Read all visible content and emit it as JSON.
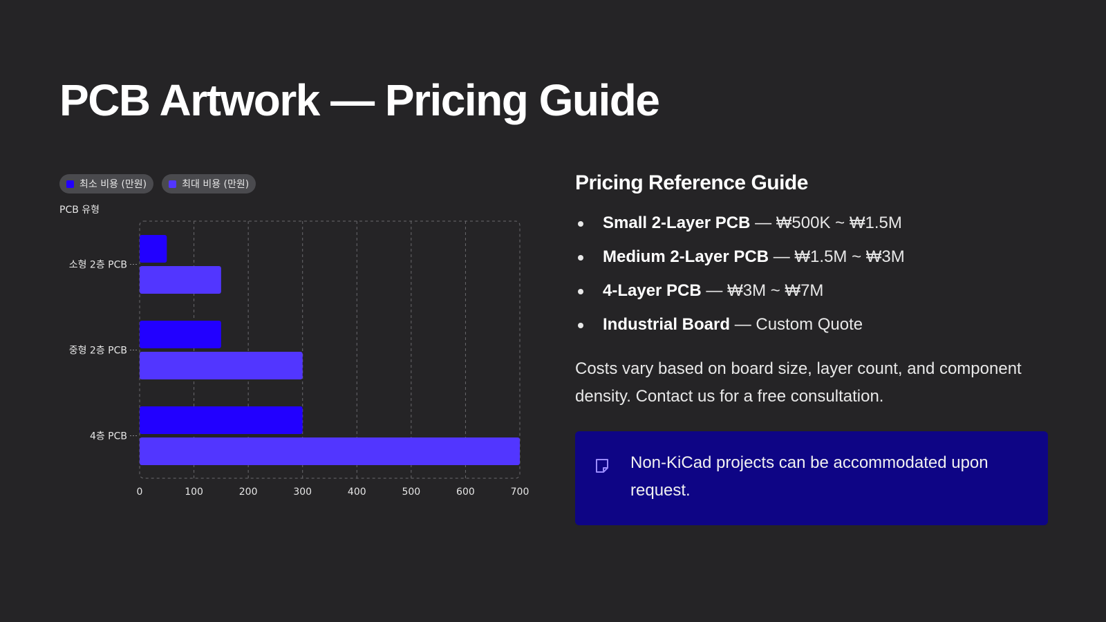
{
  "title": "PCB Artwork — Pricing Guide",
  "colors": {
    "background": "#252426",
    "min_series": "#2200ff",
    "max_series": "#5236ff",
    "info_box": "#0e0585"
  },
  "chart_data": {
    "type": "bar",
    "orientation": "horizontal",
    "ylabel": "PCB 유형",
    "categories": [
      "소형 2층 PCB",
      "중형 2층 PCB",
      "4층 PCB"
    ],
    "series": [
      {
        "name": "최소 비용 (만원)",
        "values": [
          50,
          150,
          300
        ],
        "color": "#2200ff"
      },
      {
        "name": "최대 비용 (만원)",
        "values": [
          150,
          300,
          700
        ],
        "color": "#5236ff"
      }
    ],
    "xlim": [
      0,
      700
    ],
    "xticks": [
      "0",
      "100",
      "200",
      "300",
      "400",
      "500",
      "600",
      "700"
    ],
    "grid": true,
    "legend": "top-left"
  },
  "right": {
    "heading": "Pricing Reference Guide",
    "items": [
      {
        "name": "Small 2-Layer PCB",
        "detail": " — ₩500K ~ ₩1.5M"
      },
      {
        "name": "Medium 2-Layer PCB",
        "detail": " — ₩1.5M ~ ₩3M"
      },
      {
        "name": "4-Layer PCB",
        "detail": " — ₩3M ~ ₩7M"
      },
      {
        "name": "Industrial Board",
        "detail": " — Custom Quote"
      }
    ],
    "note": "Costs vary based on board size, layer count, and component density. Contact us for a free consultation.",
    "info": {
      "icon": "sticky-note-icon",
      "text": "Non-KiCad projects can be accommodated upon request."
    }
  }
}
